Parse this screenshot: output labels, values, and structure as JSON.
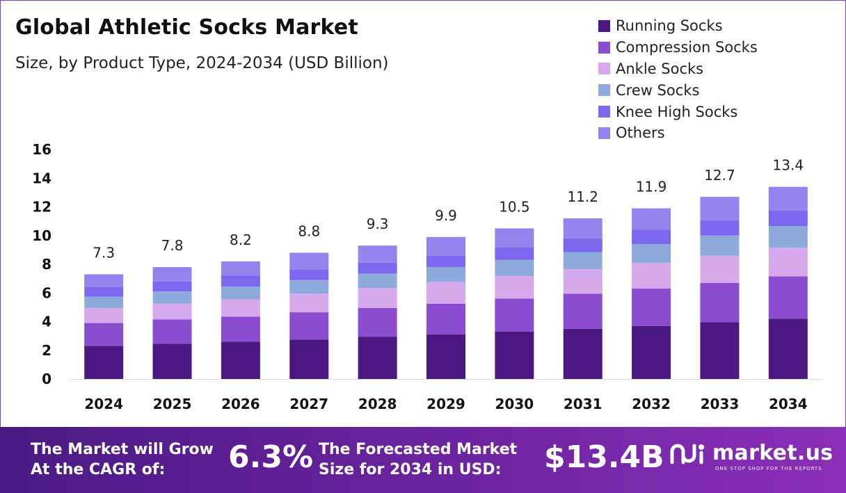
{
  "chart_data": {
    "type": "bar",
    "stacked": true,
    "title": "Global Athletic Socks Market",
    "subtitle": "Size, by Product Type, 2024-2034 (USD Billion)",
    "xlabel": "",
    "ylabel": "",
    "ylim": [
      0,
      16
    ],
    "yticks": [
      0,
      2,
      4,
      6,
      8,
      10,
      12,
      14,
      16
    ],
    "categories": [
      "2024",
      "2025",
      "2026",
      "2027",
      "2028",
      "2029",
      "2030",
      "2031",
      "2032",
      "2033",
      "2034"
    ],
    "totals": [
      7.3,
      7.8,
      8.2,
      8.8,
      9.3,
      9.9,
      10.5,
      11.2,
      11.9,
      12.7,
      13.4
    ],
    "total_labels": [
      "7.3",
      "7.8",
      "8.2",
      "8.8",
      "9.3",
      "9.9",
      "10.5",
      "11.2",
      "11.9",
      "12.7",
      "13.4"
    ],
    "legend_position": "top-right",
    "series": [
      {
        "name": "Running Socks",
        "color": "#4b1882",
        "values": [
          2.3,
          2.45,
          2.6,
          2.75,
          2.95,
          3.1,
          3.3,
          3.5,
          3.7,
          3.95,
          4.2
        ]
      },
      {
        "name": "Compression Socks",
        "color": "#8c4ccf",
        "values": [
          1.6,
          1.7,
          1.75,
          1.9,
          2.0,
          2.15,
          2.3,
          2.45,
          2.6,
          2.75,
          2.95
        ]
      },
      {
        "name": "Ankle Socks",
        "color": "#d6a9ec",
        "values": [
          1.05,
          1.1,
          1.2,
          1.3,
          1.4,
          1.5,
          1.6,
          1.7,
          1.8,
          1.9,
          2.0
        ]
      },
      {
        "name": "Crew Socks",
        "color": "#8ea9db",
        "values": [
          0.8,
          0.85,
          0.9,
          0.95,
          1.0,
          1.05,
          1.1,
          1.2,
          1.3,
          1.4,
          1.5
        ]
      },
      {
        "name": "Knee High Socks",
        "color": "#7b68ee",
        "values": [
          0.65,
          0.7,
          0.75,
          0.75,
          0.75,
          0.8,
          0.9,
          0.95,
          1.0,
          1.05,
          1.1
        ]
      },
      {
        "name": "Others",
        "color": "#9683ee",
        "values": [
          0.9,
          1.0,
          1.0,
          1.15,
          1.2,
          1.3,
          1.3,
          1.4,
          1.5,
          1.65,
          1.65
        ]
      }
    ]
  },
  "banner": {
    "cagr_text_line1": "The Market will Grow",
    "cagr_text_line2": "At the CAGR of:",
    "cagr_value": "6.3%",
    "forecast_text_line1": "The Forecasted Market",
    "forecast_text_line2": "Size for 2034 in USD:",
    "forecast_value": "$13.4B",
    "logo_name": "market.us",
    "logo_tagline": "ONE STOP SHOP FOR THE REPORTS",
    "logo_icon": "market-us-logo-icon"
  },
  "colors": {
    "text": "#222222",
    "axis_line": "#d9d9d9",
    "border": "#7b3fb8",
    "banner_start": "#4a1a84",
    "banner_end": "#8a2fb8"
  }
}
